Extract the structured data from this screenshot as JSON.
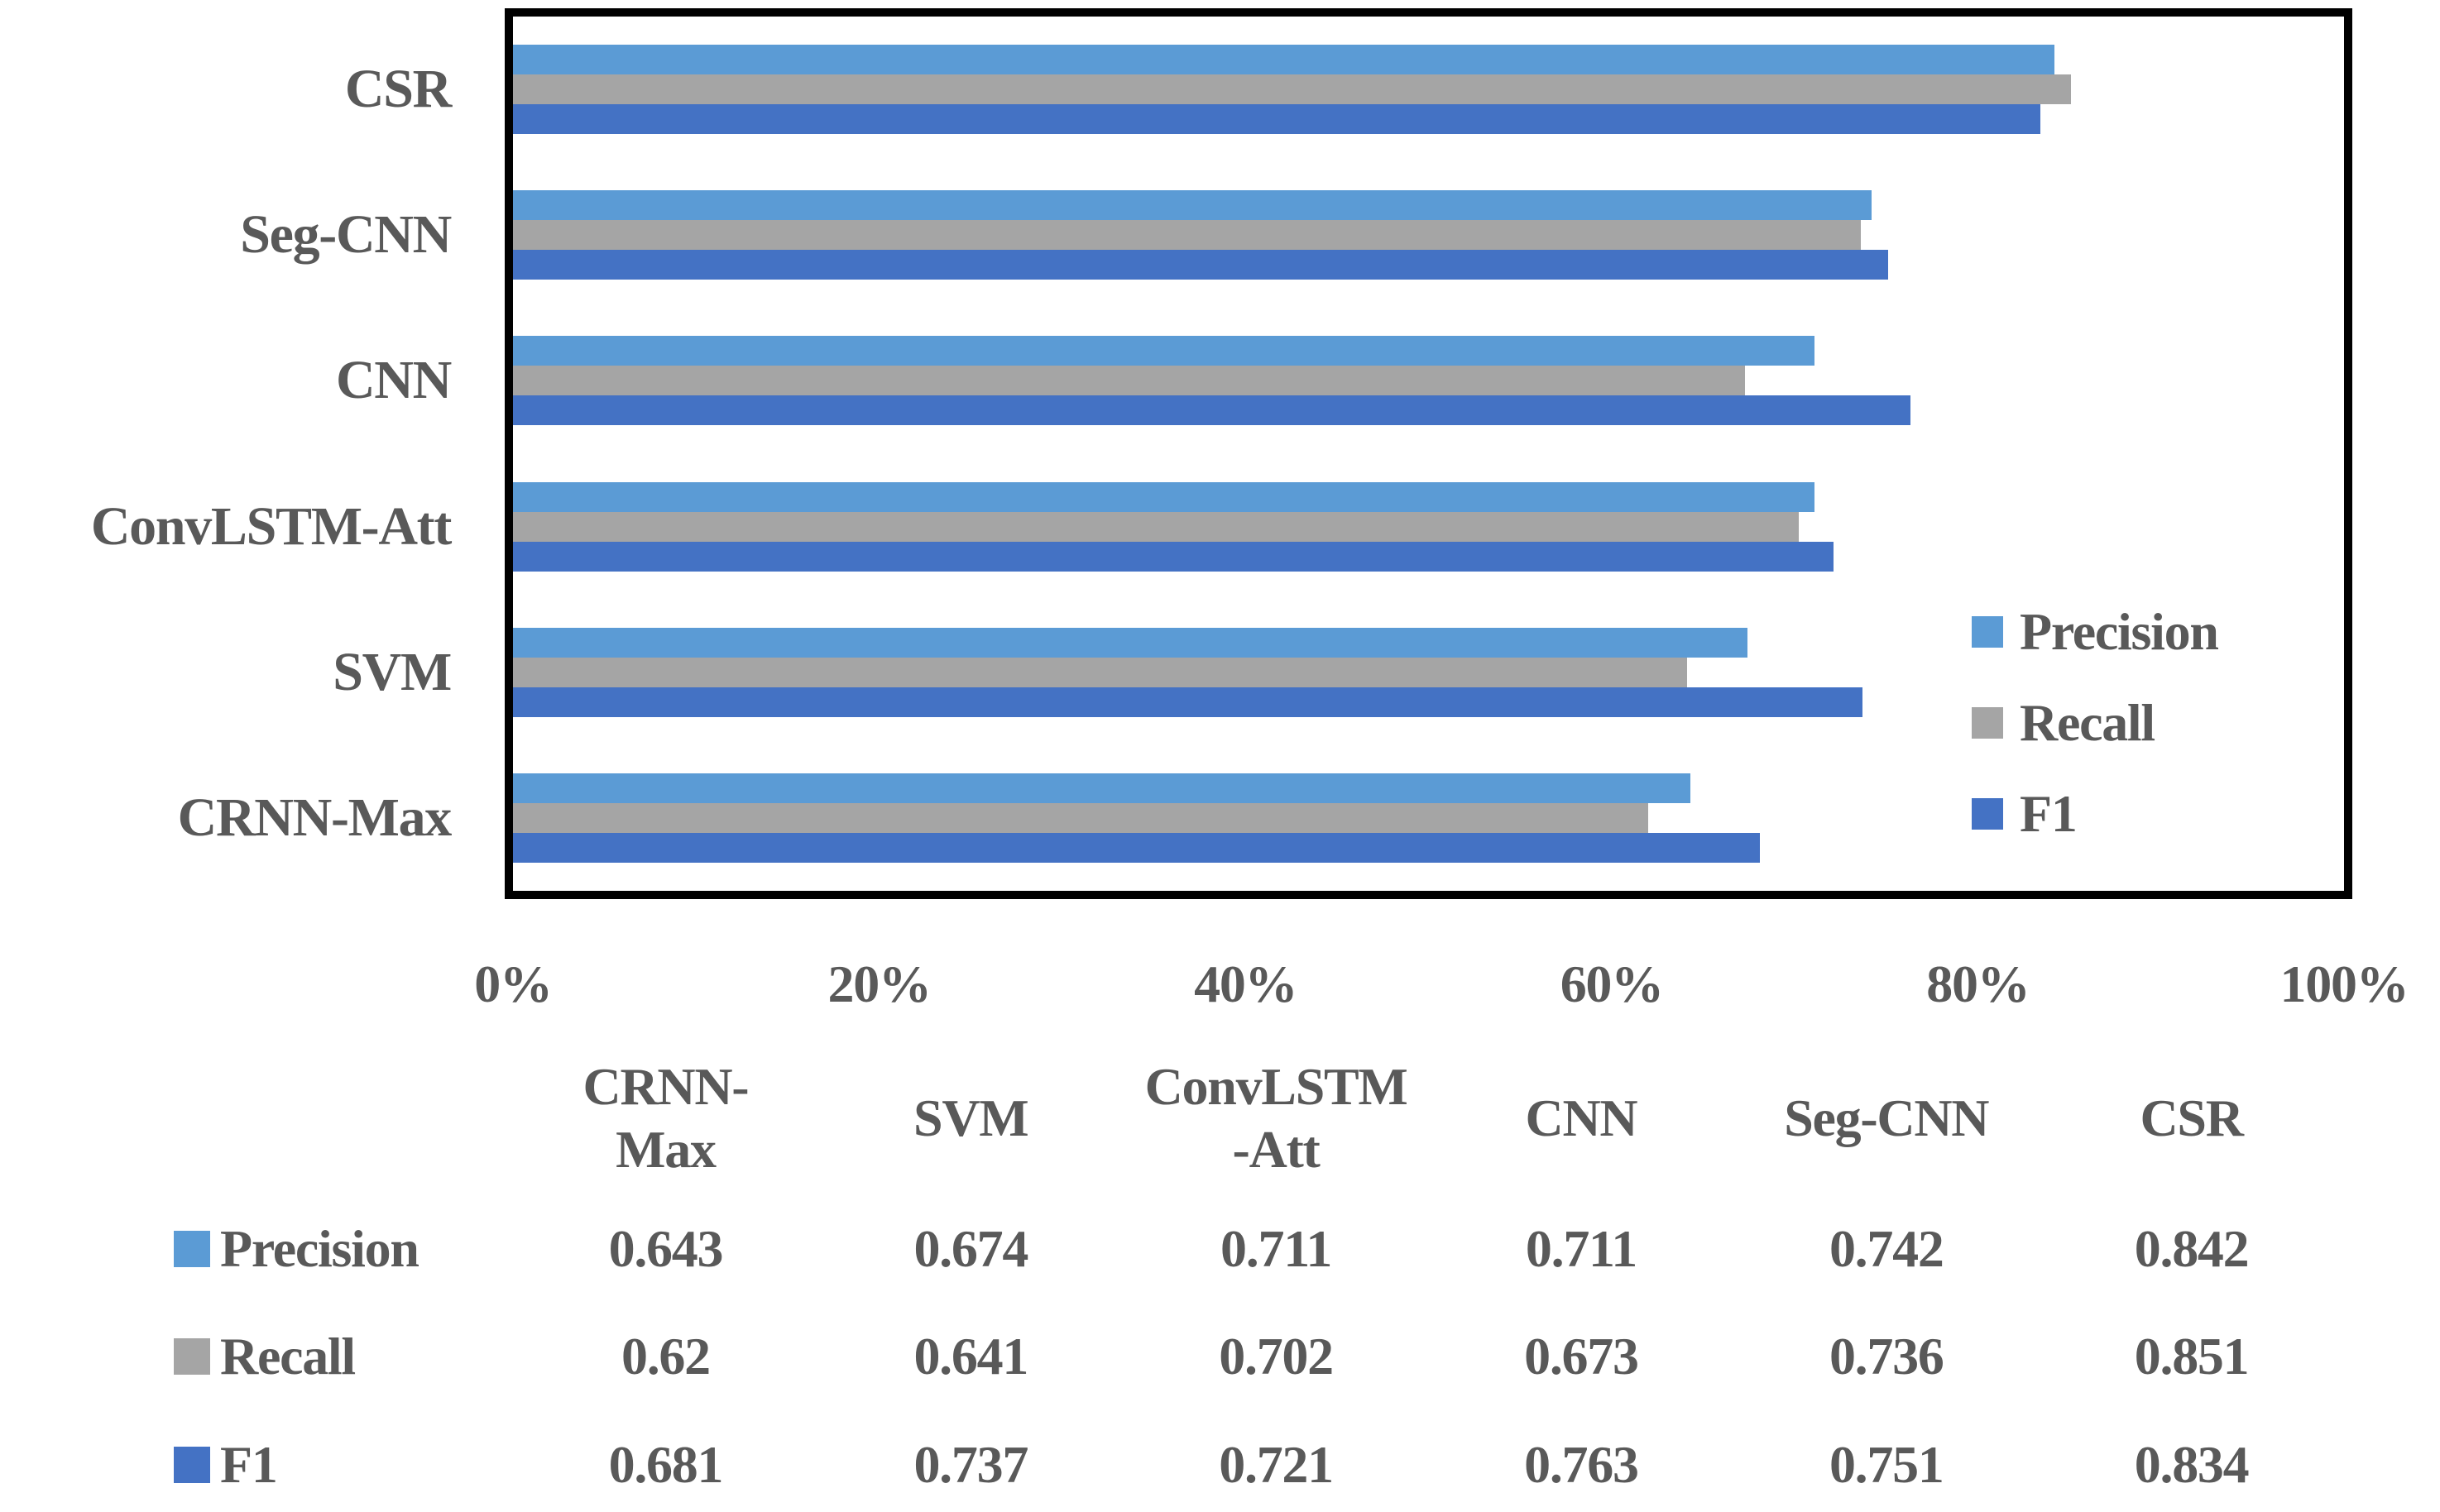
{
  "chart_data": {
    "type": "bar",
    "orientation": "horizontal",
    "title": "",
    "xlabel": "",
    "ylabel": "",
    "xlim": [
      0,
      1
    ],
    "x_tick_labels": [
      "0%",
      "20%",
      "40%",
      "60%",
      "80%",
      "100%"
    ],
    "grid": false,
    "legend_position": "right-inside",
    "categories": [
      "CRNN-Max",
      "SVM",
      "ConvLSTM-Att",
      "CNN",
      "Seg-CNN",
      "CSR"
    ],
    "category_header_lines": [
      [
        "CRNN-",
        "Max"
      ],
      [
        "SVM"
      ],
      [
        "ConvLSTM",
        "-Att"
      ],
      [
        "CNN"
      ],
      [
        "Seg-CNN"
      ],
      [
        "CSR"
      ]
    ],
    "bar_order_top_to_bottom": [
      "CSR",
      "Seg-CNN",
      "CNN",
      "ConvLSTM-Att",
      "SVM",
      "CRNN-Max"
    ],
    "series": [
      {
        "name": "Precision",
        "color": "#5B9BD5",
        "values": [
          0.643,
          0.674,
          0.711,
          0.711,
          0.742,
          0.842
        ]
      },
      {
        "name": "Recall",
        "color": "#A5A5A5",
        "values": [
          0.62,
          0.641,
          0.702,
          0.673,
          0.736,
          0.851
        ]
      },
      {
        "name": "F1",
        "color": "#4472C4",
        "values": [
          0.681,
          0.737,
          0.721,
          0.763,
          0.751,
          0.834
        ]
      }
    ],
    "text_color": "#595959",
    "frame_color": "#000000"
  }
}
